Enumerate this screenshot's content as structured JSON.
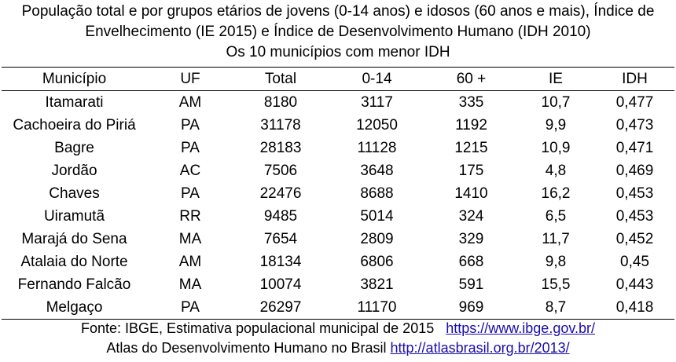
{
  "title": {
    "line1": "População total e por grupos etários de jovens (0-14 anos) e idosos (60 anos e mais), Índice de",
    "line2": "Envelhecimento (IE 2015) e Índice de Desenvolvimento Humano (IDH 2010)",
    "line3": "Os 10 municípios com menor IDH"
  },
  "table": {
    "headers": [
      "Município",
      "UF",
      "Total",
      "0-14",
      "60 +",
      "IE",
      "IDH"
    ],
    "rows": [
      [
        "Itamarati",
        "AM",
        "8180",
        "3117",
        "335",
        "10,7",
        "0,477"
      ],
      [
        "Cachoeira do Piriá",
        "PA",
        "31178",
        "12050",
        "1192",
        "9,9",
        "0,473"
      ],
      [
        "Bagre",
        "PA",
        "28183",
        "11128",
        "1215",
        "10,9",
        "0,471"
      ],
      [
        "Jordão",
        "AC",
        "7506",
        "3648",
        "175",
        "4,8",
        "0,469"
      ],
      [
        "Chaves",
        "PA",
        "22476",
        "8688",
        "1410",
        "16,2",
        "0,453"
      ],
      [
        "Uiramutã",
        "RR",
        "9485",
        "5014",
        "324",
        "6,5",
        "0,453"
      ],
      [
        "Marajá do Sena",
        "MA",
        "7654",
        "2809",
        "329",
        "11,7",
        "0,452"
      ],
      [
        "Atalaia do Norte",
        "AM",
        "18134",
        "6806",
        "668",
        "9,8",
        "0,45"
      ],
      [
        "Fernando Falcão",
        "MA",
        "10074",
        "3821",
        "591",
        "15,5",
        "0,443"
      ],
      [
        "Melgaço",
        "PA",
        "26297",
        "11170",
        "969",
        "8,7",
        "0,418"
      ]
    ]
  },
  "footer": {
    "line1_text": "Fonte: IBGE, Estimativa populacional municipal de 2015",
    "line1_link": "https://www.ibge.gov.br/",
    "line2_text": "Atlas do Desenvolvimento Humano no Brasil",
    "line2_link": "http://atlasbrasil.org.br/2013/"
  }
}
